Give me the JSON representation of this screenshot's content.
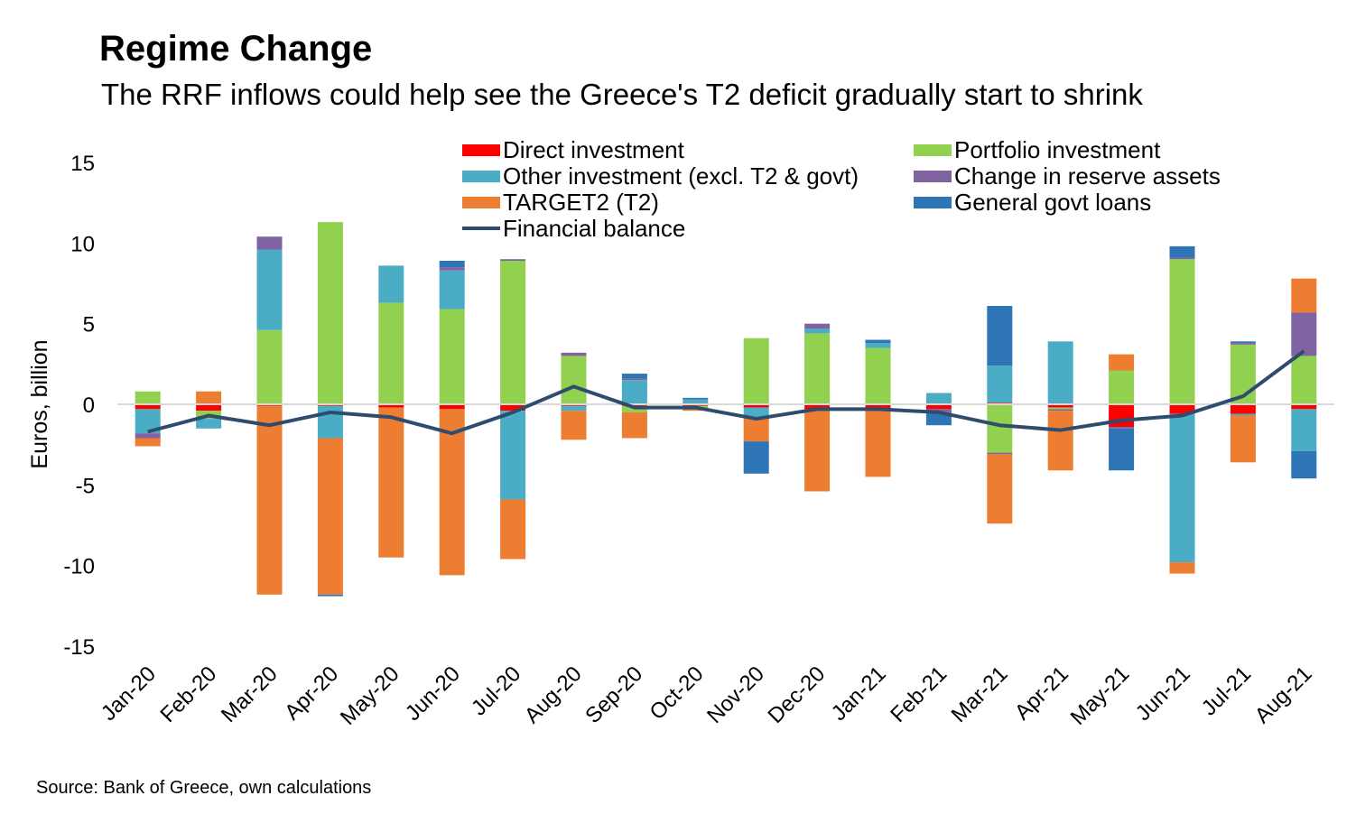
{
  "title": "Regime Change",
  "subtitle": "The RRF inflows could help see the Greece's T2 deficit gradually start to shrink",
  "source": "Source: Bank of Greece, own calculations",
  "chart_data": {
    "type": "bar",
    "stacked": true,
    "ylabel": "Euros, billion",
    "ylim": [
      -15,
      15
    ],
    "yticks": [
      15,
      10,
      5,
      0,
      -5,
      -10,
      -15
    ],
    "categories": [
      "Jan-20",
      "Feb-20",
      "Mar-20",
      "Apr-20",
      "May-20",
      "Jun-20",
      "Jul-20",
      "Aug-20",
      "Sep-20",
      "Oct-20",
      "Nov-20",
      "Dec-20",
      "Jan-21",
      "Feb-21",
      "Mar-21",
      "Apr-21",
      "May-21",
      "Jun-21",
      "Jul-21",
      "Aug-21"
    ],
    "legend_position": "top-right",
    "series": [
      {
        "name": "Direct investment",
        "color": "#ff0000",
        "values": [
          -0.3,
          -0.4,
          -0.1,
          -0.1,
          -0.2,
          -0.3,
          -0.4,
          -0.1,
          -0.1,
          -0.1,
          -0.2,
          -0.3,
          -0.3,
          -0.3,
          0.1,
          -0.2,
          -1.4,
          -0.6,
          -0.6,
          -0.3
        ]
      },
      {
        "name": "Portfolio investment",
        "color": "#92d050",
        "values": [
          0.8,
          -0.5,
          4.6,
          11.3,
          6.3,
          5.9,
          8.9,
          3.0,
          -0.4,
          -0.1,
          4.1,
          4.4,
          3.5,
          0.0,
          -3.0,
          -0.1,
          2.1,
          9.0,
          3.7,
          3.0
        ]
      },
      {
        "name": "Other investment (excl. T2 & govt)",
        "color": "#4bacc6",
        "values": [
          -1.5,
          -0.6,
          5.0,
          -2.0,
          2.3,
          2.4,
          -5.5,
          -0.3,
          1.5,
          0.3,
          -0.6,
          0.3,
          0.3,
          0.7,
          2.3,
          3.9,
          0.0,
          -9.2,
          -0.1,
          -2.6
        ]
      },
      {
        "name": "Change in reserve assets",
        "color": "#8064a2",
        "values": [
          -0.3,
          0.0,
          0.8,
          0.0,
          0.0,
          0.2,
          0.1,
          0.2,
          0.1,
          0.0,
          0.0,
          0.3,
          0.0,
          -0.2,
          -0.1,
          -0.1,
          -0.1,
          0.1,
          0.1,
          2.7
        ]
      },
      {
        "name": "TARGET2 (T2)",
        "color": "#ed7d31",
        "values": [
          -0.5,
          0.8,
          -11.7,
          -9.7,
          -9.3,
          -10.3,
          -3.7,
          -1.8,
          -1.6,
          -0.2,
          -1.5,
          -5.1,
          -4.2,
          0.0,
          -4.3,
          -3.7,
          1.0,
          -0.7,
          -2.9,
          2.1
        ]
      },
      {
        "name": "General govt loans",
        "color": "#2e75b6",
        "values": [
          0.0,
          0.0,
          0.0,
          -0.1,
          0.0,
          0.4,
          0.0,
          0.0,
          0.3,
          0.1,
          -2.0,
          0.0,
          0.2,
          -0.8,
          3.7,
          0.0,
          -2.6,
          0.7,
          0.1,
          -1.7
        ]
      },
      {
        "name": "Financial balance",
        "type": "line",
        "color": "#2f4b6e",
        "values": [
          -1.7,
          -0.7,
          -1.3,
          -0.5,
          -0.8,
          -1.8,
          -0.5,
          1.1,
          -0.2,
          -0.2,
          -0.9,
          -0.3,
          -0.3,
          -0.5,
          -1.3,
          -1.6,
          -1.0,
          -0.7,
          0.5,
          3.3
        ]
      }
    ]
  }
}
